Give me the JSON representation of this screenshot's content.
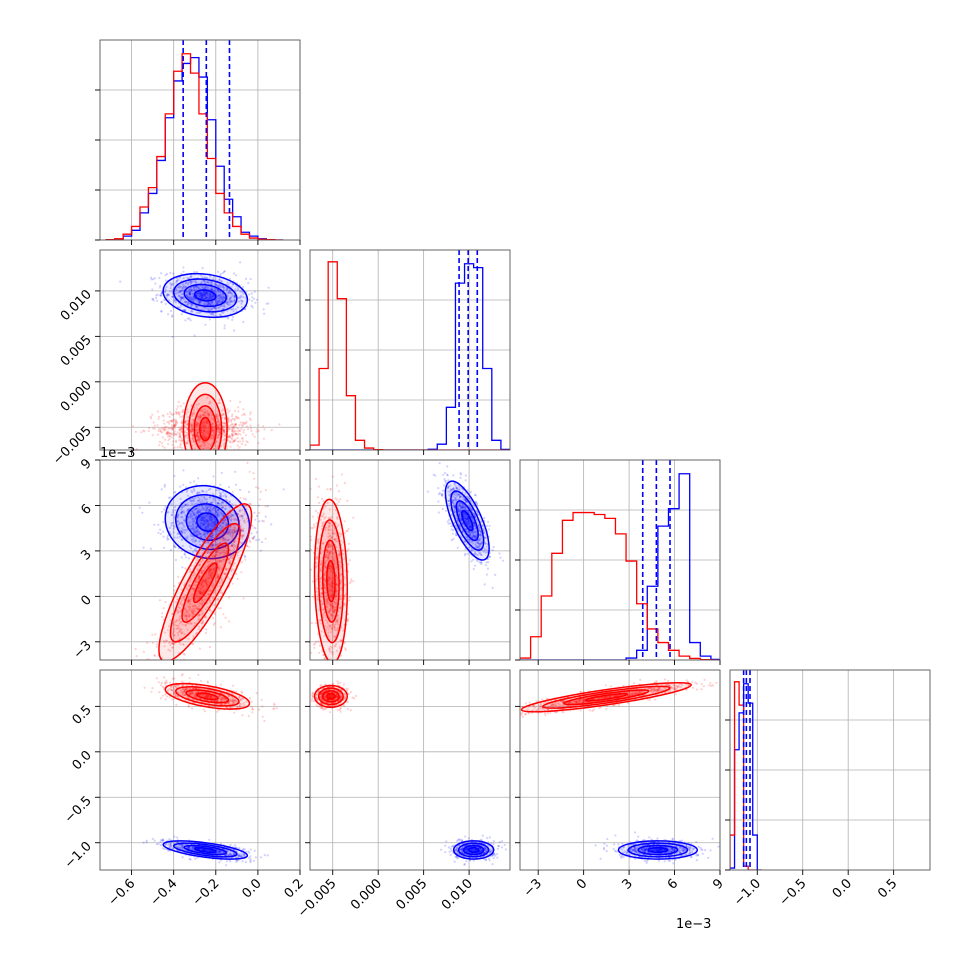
{
  "chart_data": {
    "type": "corner",
    "parameters": 4,
    "series": [
      {
        "color": "#0000ff"
      },
      {
        "color": "#ff0000"
      }
    ],
    "grid": true,
    "quantile_lines": {
      "color": "#0000ff",
      "style": "dashed"
    },
    "axes": [
      {
        "range": [
          -0.75,
          0.2
        ],
        "ticks": [
          -0.6,
          -0.4,
          -0.2,
          0.0,
          0.2
        ],
        "tick_labels": [
          "−0.6",
          "−0.4",
          "−0.2",
          "0.0",
          "0.2"
        ]
      },
      {
        "range": [
          -0.0075,
          0.0145
        ],
        "ticks": [
          -0.005,
          0.0,
          0.005,
          0.01
        ],
        "tick_labels": [
          "−0.005",
          "0.000",
          "0.005",
          "0.010"
        ]
      },
      {
        "range": [
          -4.2,
          9.0
        ],
        "ticks": [
          -3,
          0,
          3,
          6,
          9
        ],
        "tick_labels": [
          "−3",
          "0",
          "3",
          "6",
          "9"
        ],
        "offset_label": "1e−3"
      },
      {
        "range": [
          -1.3,
          0.9
        ],
        "ticks": [
          -1.0,
          -0.5,
          0.0,
          0.5
        ],
        "tick_labels": [
          "−1.0",
          "−0.5",
          "0.0",
          "0.5"
        ]
      }
    ],
    "diagonal_histograms": [
      {
        "param": 0,
        "bins": [
          -0.72,
          -0.68,
          -0.64,
          -0.6,
          -0.56,
          -0.52,
          -0.48,
          -0.44,
          -0.4,
          -0.36,
          -0.32,
          -0.28,
          -0.24,
          -0.2,
          -0.16,
          -0.12,
          -0.08,
          -0.04,
          0.0,
          0.04,
          0.08,
          0.12
        ],
        "blue": [
          0.002,
          0.005,
          0.02,
          0.05,
          0.14,
          0.24,
          0.41,
          0.63,
          0.82,
          0.91,
          0.94,
          0.84,
          0.62,
          0.38,
          0.21,
          0.12,
          0.04,
          0.02,
          0.006,
          0.002,
          0.0
        ],
        "red": [
          0.002,
          0.006,
          0.03,
          0.07,
          0.17,
          0.27,
          0.43,
          0.65,
          0.87,
          0.96,
          0.86,
          0.65,
          0.42,
          0.24,
          0.14,
          0.07,
          0.03,
          0.01,
          0.004,
          0.002,
          0.0
        ],
        "quantiles": [
          -0.355,
          -0.245,
          -0.135
        ]
      },
      {
        "param": 1,
        "bins": [
          -0.0075,
          -0.0065,
          -0.0055,
          -0.0045,
          -0.0035,
          -0.0025,
          -0.0015,
          -0.0005,
          0.0005,
          0.0015,
          0.0025,
          0.0035,
          0.0045,
          0.0055,
          0.0065,
          0.0075,
          0.0085,
          0.0095,
          0.0105,
          0.0115,
          0.0125,
          0.0135,
          0.0145
        ],
        "blue": [
          0,
          0,
          0,
          0,
          0,
          0,
          0,
          0,
          0,
          0,
          0,
          0,
          0,
          0.004,
          0.03,
          0.22,
          0.86,
          0.96,
          0.94,
          0.42,
          0.05,
          0.003
        ],
        "red": [
          0.025,
          0.42,
          0.97,
          0.78,
          0.28,
          0.05,
          0.01,
          0.002,
          0,
          0,
          0,
          0,
          0,
          0,
          0,
          0,
          0,
          0,
          0,
          0,
          0,
          0
        ],
        "quantiles": [
          0.0089,
          0.0099,
          0.0109
        ]
      },
      {
        "param": 2,
        "bins": [
          -4.2,
          -3.5,
          -2.8,
          -2.1,
          -1.4,
          -0.7,
          0.0,
          0.7,
          1.4,
          2.1,
          2.8,
          3.5,
          4.2,
          4.9,
          5.6,
          6.3,
          7.0,
          7.7,
          8.4,
          9.0
        ],
        "blue": [
          0,
          0,
          0,
          0,
          0,
          0,
          0,
          0,
          0,
          0,
          0.01,
          0.05,
          0.38,
          0.69,
          0.78,
          0.96,
          0.09,
          0.02,
          0.003
        ],
        "red": [
          0.01,
          0.12,
          0.33,
          0.55,
          0.72,
          0.76,
          0.76,
          0.75,
          0.73,
          0.65,
          0.51,
          0.29,
          0.16,
          0.09,
          0.05,
          0.02,
          0.008,
          0.002,
          0.0
        ],
        "quantiles": [
          3.9,
          4.8,
          5.7
        ]
      },
      {
        "param": 3,
        "bins": [
          -1.3,
          -1.25,
          -1.2,
          -1.15,
          -1.1,
          -1.05,
          -1.0,
          -0.95,
          0.35,
          0.45,
          0.55,
          0.65,
          0.75,
          0.85,
          0.9
        ],
        "blue": [
          0.01,
          0.62,
          0.81,
          0.96,
          0.86,
          0.18,
          0.0
        ],
        "red": [
          0.18,
          0.97,
          0.85,
          0.02,
          0.0,
          0.0
        ],
        "quantiles": [
          -1.15,
          -1.12,
          -1.08
        ]
      }
    ],
    "clusters": [
      {
        "series": 0,
        "x": 0,
        "y": 1,
        "cx": -0.25,
        "cy": 0.0095,
        "sx": 0.1,
        "sy": 0.0012,
        "rho": -0.2,
        "n": 900
      },
      {
        "series": 1,
        "x": 0,
        "y": 1,
        "cx": -0.25,
        "cy": -0.0052,
        "sx": 0.11,
        "sy": 0.0012,
        "rho": 0.0,
        "n": 900
      },
      {
        "series": 0,
        "x": 0,
        "y": 2,
        "cx": -0.24,
        "cy": 4.9,
        "sx": 0.1,
        "sy": 1.2,
        "rho": -0.1,
        "n": 900
      },
      {
        "series": 1,
        "x": 0,
        "y": 2,
        "cx": -0.25,
        "cy": 0.9,
        "sx": 0.11,
        "sy": 2.6,
        "rho": 0.85,
        "n": 900
      },
      {
        "series": 0,
        "x": 0,
        "y": 3,
        "cx": -0.25,
        "cy": -1.08,
        "sx": 0.1,
        "sy": 0.05,
        "rho": -0.6,
        "n": 700
      },
      {
        "series": 1,
        "x": 0,
        "y": 3,
        "cx": -0.24,
        "cy": 0.61,
        "sx": 0.1,
        "sy": 0.07,
        "rho": -0.55,
        "n": 700
      },
      {
        "series": 0,
        "x": 1,
        "y": 2,
        "cx": 0.0098,
        "cy": 5.0,
        "sx": 0.0012,
        "sy": 1.3,
        "rho": -0.7,
        "n": 800
      },
      {
        "series": 1,
        "x": 1,
        "y": 2,
        "cx": -0.0052,
        "cy": 1.0,
        "sx": 0.0009,
        "sy": 2.7,
        "rho": -0.1,
        "n": 800
      },
      {
        "series": 0,
        "x": 1,
        "y": 3,
        "cx": 0.0105,
        "cy": -1.08,
        "sx": 0.0011,
        "sy": 0.05,
        "rho": 0.0,
        "n": 600
      },
      {
        "series": 1,
        "x": 1,
        "y": 3,
        "cx": -0.0052,
        "cy": 0.61,
        "sx": 0.0009,
        "sy": 0.06,
        "rho": 0.0,
        "n": 600
      },
      {
        "series": 0,
        "x": 2,
        "y": 3,
        "cx": 4.9,
        "cy": -1.08,
        "sx": 1.3,
        "sy": 0.05,
        "rho": 0.0,
        "n": 700
      },
      {
        "series": 1,
        "x": 2,
        "y": 3,
        "cx": 1.5,
        "cy": 0.6,
        "sx": 2.8,
        "sy": 0.08,
        "rho": 0.85,
        "n": 900
      }
    ]
  }
}
